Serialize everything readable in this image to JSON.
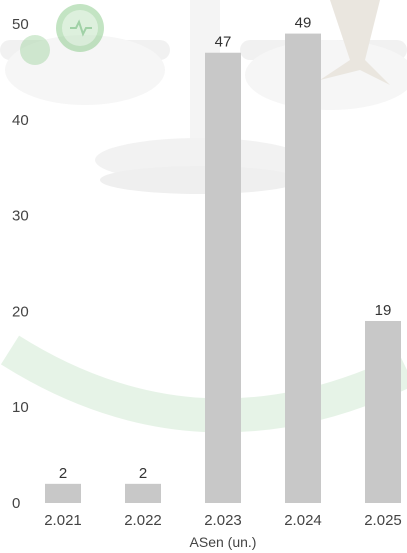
{
  "chart_data": {
    "type": "bar",
    "categories": [
      "2.021",
      "2.022",
      "2.023",
      "2.024",
      "2.025"
    ],
    "values": [
      2,
      2,
      47,
      49,
      19
    ],
    "data_labels": [
      "2",
      "2",
      "47",
      "49",
      "19"
    ],
    "xlabel": "ASen (un.)",
    "ylabel": "",
    "ylim": [
      0,
      50
    ],
    "yticks": [
      0,
      10,
      20,
      30,
      40,
      50
    ],
    "grid": false,
    "legend": "none",
    "bar_color": "#c8c8c8"
  },
  "colors": {
    "background_watermark_green": "#2e9a3c",
    "background_watermark_gray": "#e9e9e9"
  },
  "icons": [
    "balance-scale-watermark",
    "heart-pulse-icon"
  ]
}
